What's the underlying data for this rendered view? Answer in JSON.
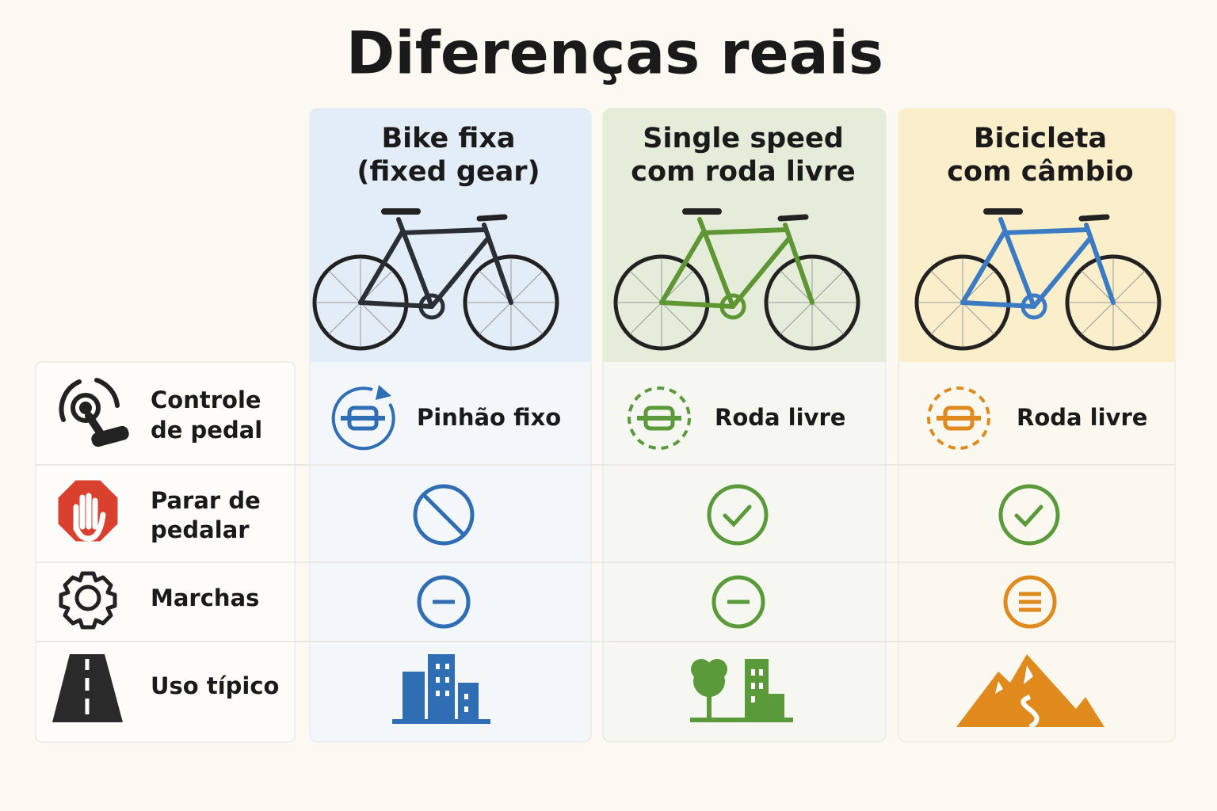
{
  "header": {
    "title": "Diferenças reais"
  },
  "columns": [
    {
      "title": [
        "Bike fixa",
        "(fixed gear)"
      ]
    },
    {
      "title": [
        "Single speed",
        "com roda livre"
      ]
    },
    {
      "title": [
        "Bicicleta",
        "com câmbio"
      ]
    }
  ],
  "rows": [
    {
      "label": [
        "Controle",
        "de pedal"
      ],
      "cells": [
        "Pinhão fixo",
        "Roda livre",
        "Roda livre"
      ]
    },
    {
      "label": [
        "Parar de",
        "pedalar"
      ]
    },
    {
      "label": [
        "Marchas"
      ]
    },
    {
      "label": [
        "Uso típico"
      ]
    }
  ]
}
